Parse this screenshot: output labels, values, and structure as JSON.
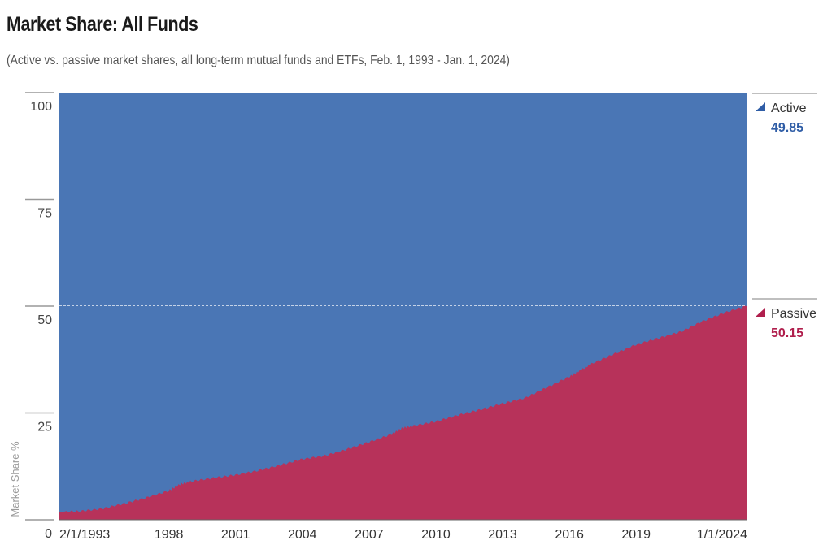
{
  "title": "Market Share: All Funds",
  "subtitle": "(Active vs. passive market shares, all long-term mutual funds and ETFs, Feb. 1, 1993 - Jan. 1, 2024)",
  "colors": {
    "active": "#4a76b5",
    "passive": "#b7325a",
    "active_text": "#2f5da6",
    "passive_text": "#b01f4d"
  },
  "chart_data": {
    "type": "area",
    "stacked": true,
    "title": "Market Share: All Funds",
    "ylabel": "Market Share %",
    "xlabel": "",
    "ylim": [
      0,
      100
    ],
    "xlim": [
      1993.08,
      2024.0
    ],
    "yticks": [
      0,
      25,
      50,
      75,
      100
    ],
    "xticks": [
      {
        "label": "2/1/1993",
        "x": 1993.08
      },
      {
        "label": "1998",
        "x": 1998.0
      },
      {
        "label": "2001",
        "x": 2001.0
      },
      {
        "label": "2004",
        "x": 2004.0
      },
      {
        "label": "2007",
        "x": 2007.0
      },
      {
        "label": "2010",
        "x": 2010.0
      },
      {
        "label": "2013",
        "x": 2013.0
      },
      {
        "label": "2016",
        "x": 2016.0
      },
      {
        "label": "2019",
        "x": 2019.0
      },
      {
        "label": "1/1/2024",
        "x": 2024.0
      }
    ],
    "x": [
      1993.08,
      1994.0,
      1995.0,
      1996.0,
      1997.0,
      1998.0,
      1998.5,
      1999.0,
      2000.0,
      2001.0,
      2002.0,
      2003.0,
      2004.0,
      2005.0,
      2006.0,
      2007.0,
      2008.0,
      2008.5,
      2009.0,
      2010.0,
      2011.0,
      2012.0,
      2013.0,
      2014.0,
      2015.0,
      2016.0,
      2016.5,
      2017.0,
      2018.0,
      2019.0,
      2020.0,
      2021.0,
      2022.0,
      2023.0,
      2024.0
    ],
    "series": [
      {
        "name": "Passive",
        "values": [
          1.8,
          2.0,
          2.6,
          3.8,
          5.2,
          6.8,
          8.3,
          9.0,
          9.8,
          10.5,
          11.5,
          12.8,
          14.2,
          15.0,
          16.5,
          18.2,
          20.0,
          21.5,
          22.0,
          23.0,
          24.5,
          25.8,
          27.2,
          28.5,
          31.0,
          33.5,
          35.0,
          36.5,
          38.8,
          41.0,
          42.5,
          44.0,
          46.5,
          48.5,
          50.15
        ]
      },
      {
        "name": "Active",
        "values": [
          98.2,
          98.0,
          97.4,
          96.2,
          94.8,
          93.2,
          91.7,
          91.0,
          90.2,
          89.5,
          88.5,
          87.2,
          85.8,
          85.0,
          83.5,
          81.8,
          80.0,
          78.5,
          78.0,
          77.0,
          75.5,
          74.2,
          72.8,
          71.5,
          69.0,
          66.5,
          65.0,
          63.5,
          61.2,
          59.0,
          57.5,
          56.0,
          53.5,
          51.5,
          49.85
        ]
      }
    ],
    "reference_line": {
      "y": 50.15,
      "style": "dashed"
    },
    "legend": [
      {
        "name": "Active",
        "value": "49.85"
      },
      {
        "name": "Passive",
        "value": "50.15"
      }
    ]
  }
}
